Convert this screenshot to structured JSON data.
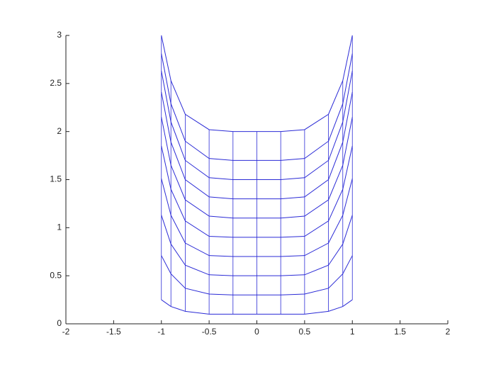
{
  "chart_data": {
    "type": "line",
    "x": [
      -1,
      -0.9,
      -0.75,
      -0.5,
      -0.25,
      0,
      0.25,
      0.5,
      0.75,
      0.9,
      1
    ],
    "series": [
      {
        "color": "#2b2bd6",
        "values": [
          0.25,
          0.18,
          0.13,
          0.1,
          0.1,
          0.1,
          0.1,
          0.1,
          0.13,
          0.18,
          0.25
        ]
      },
      {
        "color": "#2b2bd6",
        "values": [
          0.71,
          0.52,
          0.37,
          0.31,
          0.3,
          0.3,
          0.3,
          0.31,
          0.37,
          0.52,
          0.71
        ]
      },
      {
        "color": "#2b2bd6",
        "values": [
          1.13,
          0.83,
          0.61,
          0.51,
          0.5,
          0.5,
          0.5,
          0.51,
          0.61,
          0.83,
          1.13
        ]
      },
      {
        "color": "#2b2bd6",
        "values": [
          1.51,
          1.13,
          0.84,
          0.71,
          0.7,
          0.7,
          0.7,
          0.71,
          0.84,
          1.13,
          1.51
        ]
      },
      {
        "color": "#2b2bd6",
        "values": [
          1.85,
          1.4,
          1.07,
          0.91,
          0.9,
          0.9,
          0.9,
          0.91,
          1.07,
          1.4,
          1.85
        ]
      },
      {
        "color": "#2b2bd6",
        "values": [
          2.15,
          1.65,
          1.29,
          1.12,
          1.1,
          1.1,
          1.1,
          1.12,
          1.29,
          1.65,
          2.15
        ]
      },
      {
        "color": "#2b2bd6",
        "values": [
          2.41,
          1.89,
          1.5,
          1.32,
          1.3,
          1.3,
          1.3,
          1.32,
          1.5,
          1.89,
          2.41
        ]
      },
      {
        "color": "#2b2bd6",
        "values": [
          2.63,
          2.1,
          1.7,
          1.52,
          1.5,
          1.5,
          1.5,
          1.52,
          1.7,
          2.1,
          2.63
        ]
      },
      {
        "color": "#2b2bd6",
        "values": [
          2.81,
          2.29,
          1.9,
          1.72,
          1.7,
          1.7,
          1.7,
          1.72,
          1.9,
          2.29,
          2.81
        ]
      },
      {
        "color": "#2b2bd6",
        "values": [
          3.0,
          2.53,
          2.18,
          2.02,
          2.0,
          2.0,
          2.0,
          2.02,
          2.18,
          2.53,
          3.0
        ]
      }
    ],
    "xlim": [
      -2,
      2
    ],
    "xticks": [
      -2,
      -1.5,
      -1,
      -0.5,
      0,
      0.5,
      1,
      1.5,
      2
    ],
    "ylim": [
      0,
      3
    ],
    "yticks": [
      0,
      0.5,
      1,
      1.5,
      2,
      2.5,
      3
    ]
  }
}
